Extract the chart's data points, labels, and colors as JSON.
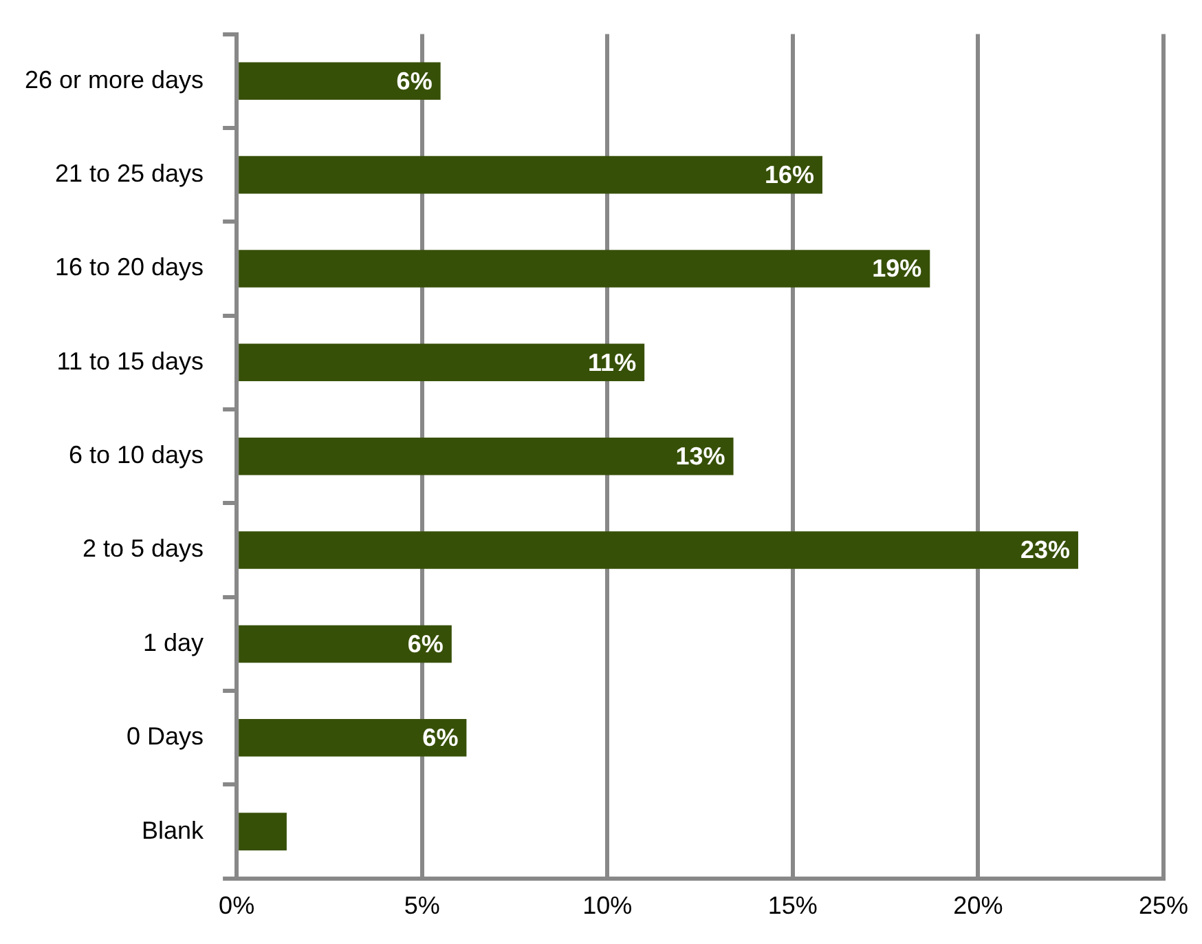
{
  "chart_data": {
    "type": "bar",
    "orientation": "horizontal",
    "categories": [
      "26 or more days",
      "21 to 25 days",
      "16 to 20 days",
      "11 to 15 days",
      "6 to 10 days",
      "2 to 5 days",
      "1 day",
      "0 Days",
      "Blank"
    ],
    "values": [
      5.5,
      15.8,
      18.7,
      11.0,
      13.4,
      22.7,
      5.8,
      6.2,
      1.35
    ],
    "value_labels": [
      "6%",
      "16%",
      "19%",
      "11%",
      "13%",
      "23%",
      "6%",
      "6%",
      null
    ],
    "color": "#375008",
    "xlim": [
      0,
      25
    ],
    "xticks": [
      {
        "value": 0,
        "label": "0%"
      },
      {
        "value": 5,
        "label": "5%"
      },
      {
        "value": 10,
        "label": "10%"
      },
      {
        "value": 15,
        "label": "15%"
      },
      {
        "value": 20,
        "label": "20%"
      },
      {
        "value": 25,
        "label": "25%"
      }
    ],
    "grid": "x"
  }
}
